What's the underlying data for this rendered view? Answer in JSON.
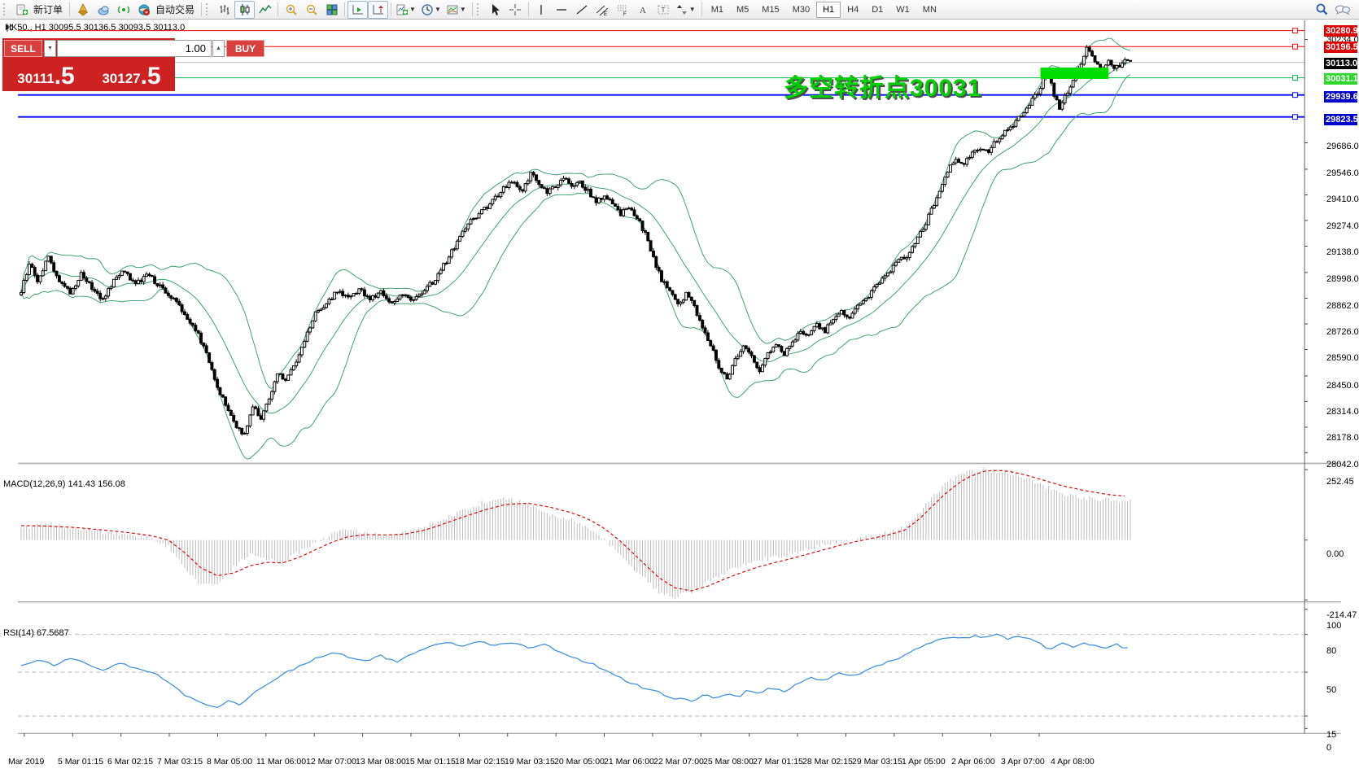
{
  "toolbar": {
    "new_order_label": "新订单",
    "auto_trading_label": "自动交易",
    "timeframes": [
      "M1",
      "M5",
      "M15",
      "M30",
      "H1",
      "H4",
      "D1",
      "W1",
      "MN"
    ],
    "active_timeframe": "H1",
    "icon_names": [
      "new-order-icon",
      "compass-icon",
      "cloud-icon",
      "signal-icon",
      "globe-icon",
      "bar-chart-icon",
      "candlestick-icon",
      "line-chart-icon",
      "zoom-in-icon",
      "zoom-out-icon",
      "tile-windows-icon",
      "auto-scroll-icon",
      "chart-shift-icon",
      "indicators-icon",
      "periods-icon",
      "templates-icon",
      "cursor-icon",
      "crosshair-icon",
      "vertical-line-icon",
      "horizontal-line-icon",
      "trendline-icon",
      "channel-icon",
      "fibonacci-icon",
      "text-icon",
      "text-label-icon",
      "arrows-icon",
      "search-icon",
      "chat-icon"
    ]
  },
  "chart": {
    "title": "HK50., H1  30095.5 30136.5 30093.5 30113.0",
    "symbol": "HK50.",
    "period": "H1",
    "open": "30095.5",
    "high": "30136.5",
    "low": "30093.5",
    "close": "30113.0"
  },
  "trade_panel": {
    "sell_label": "SELL",
    "buy_label": "BUY",
    "volume": "1.00",
    "sell_price_main": "30111",
    "sell_price_frac": ".5",
    "buy_price_main": "30127",
    "buy_price_frac": ".5"
  },
  "annotation": {
    "text": "多空转折点30031",
    "color": "#00cf00"
  },
  "macd_panel": {
    "label": "MACD(12,26,9) 141.43 156.08"
  },
  "rsi_panel": {
    "label": "RSI(14) 67.5687"
  },
  "price_axis": {
    "ticks": [
      "30234.0",
      "29686.0",
      "29546.0",
      "29410.0",
      "29274.0",
      "29138.0",
      "28998.0",
      "28862.0",
      "28726.0",
      "28590.0",
      "28450.0",
      "28314.0",
      "28178.0",
      "28042.0"
    ],
    "tick_values": [
      30234.0,
      29686.0,
      29546.0,
      29410.0,
      29274.0,
      29138.0,
      28998.0,
      28862.0,
      28726.0,
      28590.0,
      28450.0,
      28314.0,
      28178.0,
      28042.0
    ]
  },
  "macd_axis": {
    "labels": [
      "252.45",
      "0.00",
      "-214.47"
    ],
    "values": [
      252.45,
      0,
      -214.47
    ]
  },
  "rsi_axis": {
    "labels": [
      "100",
      "80",
      "50",
      "15",
      "0"
    ],
    "values": [
      100,
      80,
      50,
      15,
      0
    ]
  },
  "time_axis": [
    "Mar 2019",
    "5 Mar 01:15",
    "6 Mar 02:15",
    "7 Mar 03:15",
    "8 Mar 05:00",
    "11 Mar 06:00",
    "12 Mar 07:00",
    "13 Mar 08:00",
    "15 Mar 01:15",
    "18 Mar 02:15",
    "19 Mar 03:15",
    "20 Mar 05:00",
    "21 Mar 06:00",
    "22 Mar 07:00",
    "25 Mar 08:00",
    "27 Mar 01:15",
    "28 Mar 02:15",
    "29 Mar 03:15",
    "1 Apr 05:00",
    "2 Apr 06:00",
    "3 Apr 07:00",
    "4 Apr 08:00"
  ],
  "chart_data": {
    "type": "candlestick",
    "symbol": "HK50",
    "timeframe": "H1",
    "bar_count": 408,
    "price_range": [
      28042.0,
      30280.9
    ],
    "indicators": {
      "bollinger": {
        "period": 20,
        "deviation": 2,
        "color": "#3aa06a"
      },
      "macd": {
        "fast": 12,
        "slow": 26,
        "signal": 9,
        "current": 141.43,
        "signal_current": 156.08,
        "range": [
          -214.47,
          252.45
        ]
      },
      "rsi": {
        "period": 14,
        "current": 67.5687,
        "levels": [
          80,
          50,
          15
        ]
      }
    },
    "horizontal_lines": [
      {
        "label": "30280.9",
        "price": 30280.9,
        "line_color": "#ff0000",
        "badge_color": "#dd0000",
        "thickness": 1,
        "handle": true
      },
      {
        "label": "30196.5",
        "price": 30196.5,
        "line_color": "#ff0000",
        "badge_color": "#dd0000",
        "thickness": 1,
        "handle": true
      },
      {
        "label": "30113.0",
        "price": 30113.0,
        "line_color": "#bbbbbb",
        "badge_color": "#000000",
        "thickness": 1,
        "handle": false
      },
      {
        "label": "30031.1",
        "price": 30031.1,
        "line_color": "#00b94d",
        "badge_color": "#2ed62e",
        "thickness": 1,
        "handle": true
      },
      {
        "label": "29939.6",
        "price": 29939.6,
        "line_color": "#0000ff",
        "badge_color": "#0000cc",
        "thickness": 2,
        "handle": true
      },
      {
        "label": "29823.5",
        "price": 29823.5,
        "line_color": "#0000ff",
        "badge_color": "#0000cc",
        "thickness": 2,
        "handle": true
      }
    ],
    "support_zone": {
      "price_top": 30085,
      "price_bottom": 30025,
      "bar_start": 374,
      "bar_end": 399,
      "color": "#00dd00"
    },
    "price_anchors": [
      [
        0,
        28900
      ],
      [
        3,
        29040
      ],
      [
        6,
        28960
      ],
      [
        10,
        29080
      ],
      [
        14,
        28950
      ],
      [
        18,
        28890
      ],
      [
        22,
        28990
      ],
      [
        26,
        28920
      ],
      [
        30,
        28850
      ],
      [
        34,
        28960
      ],
      [
        38,
        29010
      ],
      [
        42,
        28930
      ],
      [
        46,
        28990
      ],
      [
        50,
        28940
      ],
      [
        54,
        28880
      ],
      [
        58,
        28820
      ],
      [
        61,
        28750
      ],
      [
        64,
        28700
      ],
      [
        67,
        28600
      ],
      [
        70,
        28480
      ],
      [
        73,
        28360
      ],
      [
        76,
        28270
      ],
      [
        79,
        28180
      ],
      [
        82,
        28140
      ],
      [
        85,
        28290
      ],
      [
        88,
        28230
      ],
      [
        91,
        28330
      ],
      [
        94,
        28460
      ],
      [
        97,
        28430
      ],
      [
        100,
        28500
      ],
      [
        104,
        28640
      ],
      [
        108,
        28780
      ],
      [
        112,
        28840
      ],
      [
        116,
        28900
      ],
      [
        120,
        28860
      ],
      [
        124,
        28910
      ],
      [
        128,
        28860
      ],
      [
        132,
        28890
      ],
      [
        136,
        28840
      ],
      [
        140,
        28880
      ],
      [
        144,
        28850
      ],
      [
        148,
        28910
      ],
      [
        152,
        28960
      ],
      [
        156,
        29060
      ],
      [
        160,
        29160
      ],
      [
        164,
        29260
      ],
      [
        168,
        29310
      ],
      [
        172,
        29360
      ],
      [
        176,
        29430
      ],
      [
        180,
        29480
      ],
      [
        184,
        29440
      ],
      [
        187,
        29520
      ],
      [
        190,
        29470
      ],
      [
        193,
        29420
      ],
      [
        196,
        29460
      ],
      [
        199,
        29500
      ],
      [
        202,
        29450
      ],
      [
        205,
        29480
      ],
      [
        208,
        29430
      ],
      [
        211,
        29370
      ],
      [
        214,
        29410
      ],
      [
        217,
        29360
      ],
      [
        220,
        29310
      ],
      [
        223,
        29350
      ],
      [
        226,
        29290
      ],
      [
        229,
        29200
      ],
      [
        232,
        29070
      ],
      [
        235,
        28960
      ],
      [
        238,
        28890
      ],
      [
        241,
        28830
      ],
      [
        244,
        28880
      ],
      [
        247,
        28820
      ],
      [
        250,
        28700
      ],
      [
        253,
        28610
      ],
      [
        256,
        28500
      ],
      [
        259,
        28430
      ],
      [
        262,
        28540
      ],
      [
        265,
        28600
      ],
      [
        268,
        28550
      ],
      [
        271,
        28480
      ],
      [
        274,
        28560
      ],
      [
        277,
        28610
      ],
      [
        280,
        28570
      ],
      [
        283,
        28630
      ],
      [
        286,
        28690
      ],
      [
        289,
        28660
      ],
      [
        292,
        28720
      ],
      [
        295,
        28690
      ],
      [
        298,
        28750
      ],
      [
        301,
        28790
      ],
      [
        304,
        28760
      ],
      [
        307,
        28820
      ],
      [
        310,
        28860
      ],
      [
        313,
        28910
      ],
      [
        316,
        28960
      ],
      [
        319,
        29010
      ],
      [
        322,
        29060
      ],
      [
        325,
        29090
      ],
      [
        328,
        29150
      ],
      [
        331,
        29230
      ],
      [
        334,
        29330
      ],
      [
        337,
        29440
      ],
      [
        340,
        29540
      ],
      [
        343,
        29600
      ],
      [
        346,
        29570
      ],
      [
        349,
        29630
      ],
      [
        352,
        29660
      ],
      [
        355,
        29640
      ],
      [
        358,
        29700
      ],
      [
        361,
        29740
      ],
      [
        364,
        29780
      ],
      [
        367,
        29830
      ],
      [
        370,
        29890
      ],
      [
        373,
        29950
      ],
      [
        375,
        30020
      ],
      [
        377,
        30080
      ],
      [
        379,
        29940
      ],
      [
        381,
        29870
      ],
      [
        383,
        29930
      ],
      [
        385,
        29990
      ],
      [
        387,
        30040
      ],
      [
        389,
        30110
      ],
      [
        391,
        30200
      ],
      [
        393,
        30150
      ],
      [
        395,
        30100
      ],
      [
        397,
        30060
      ],
      [
        399,
        30120
      ],
      [
        401,
        30080
      ],
      [
        403,
        30100
      ],
      [
        405,
        30140
      ],
      [
        407,
        30113
      ]
    ],
    "macd_hist_anchors": [
      [
        0,
        45
      ],
      [
        10,
        58
      ],
      [
        20,
        45
      ],
      [
        30,
        30
      ],
      [
        40,
        18
      ],
      [
        48,
        5
      ],
      [
        54,
        -25
      ],
      [
        60,
        -95
      ],
      [
        66,
        -165
      ],
      [
        72,
        -155
      ],
      [
        78,
        -100
      ],
      [
        84,
        -50
      ],
      [
        90,
        -65
      ],
      [
        96,
        -80
      ],
      [
        102,
        -45
      ],
      [
        108,
        -12
      ],
      [
        114,
        22
      ],
      [
        120,
        38
      ],
      [
        127,
        22
      ],
      [
        134,
        14
      ],
      [
        141,
        28
      ],
      [
        148,
        45
      ],
      [
        155,
        75
      ],
      [
        162,
        105
      ],
      [
        170,
        138
      ],
      [
        178,
        150
      ],
      [
        186,
        128
      ],
      [
        194,
        95
      ],
      [
        202,
        72
      ],
      [
        208,
        45
      ],
      [
        214,
        5
      ],
      [
        220,
        -55
      ],
      [
        227,
        -125
      ],
      [
        234,
        -185
      ],
      [
        240,
        -205
      ],
      [
        246,
        -185
      ],
      [
        252,
        -150
      ],
      [
        258,
        -120
      ],
      [
        264,
        -95
      ],
      [
        270,
        -75
      ],
      [
        276,
        -62
      ],
      [
        282,
        -50
      ],
      [
        288,
        -35
      ],
      [
        294,
        -20
      ],
      [
        300,
        -8
      ],
      [
        306,
        3
      ],
      [
        312,
        12
      ],
      [
        318,
        25
      ],
      [
        324,
        45
      ],
      [
        329,
        90
      ],
      [
        334,
        150
      ],
      [
        339,
        200
      ],
      [
        344,
        232
      ],
      [
        349,
        250
      ],
      [
        354,
        252
      ],
      [
        359,
        246
      ],
      [
        364,
        236
      ],
      [
        369,
        220
      ],
      [
        374,
        200
      ],
      [
        379,
        178
      ],
      [
        384,
        160
      ],
      [
        389,
        152
      ],
      [
        394,
        148
      ],
      [
        399,
        144
      ],
      [
        403,
        142
      ],
      [
        407,
        141
      ]
    ],
    "macd_signal_anchors": [
      [
        0,
        52
      ],
      [
        10,
        50
      ],
      [
        20,
        45
      ],
      [
        30,
        36
      ],
      [
        40,
        26
      ],
      [
        48,
        15
      ],
      [
        54,
        0
      ],
      [
        60,
        -45
      ],
      [
        66,
        -100
      ],
      [
        72,
        -128
      ],
      [
        78,
        -118
      ],
      [
        84,
        -92
      ],
      [
        90,
        -80
      ],
      [
        96,
        -82
      ],
      [
        102,
        -62
      ],
      [
        108,
        -35
      ],
      [
        114,
        -8
      ],
      [
        120,
        12
      ],
      [
        127,
        20
      ],
      [
        134,
        18
      ],
      [
        141,
        22
      ],
      [
        148,
        35
      ],
      [
        155,
        58
      ],
      [
        162,
        82
      ],
      [
        170,
        108
      ],
      [
        178,
        128
      ],
      [
        186,
        132
      ],
      [
        194,
        118
      ],
      [
        202,
        98
      ],
      [
        208,
        76
      ],
      [
        214,
        42
      ],
      [
        220,
        -5
      ],
      [
        227,
        -70
      ],
      [
        234,
        -135
      ],
      [
        240,
        -172
      ],
      [
        246,
        -182
      ],
      [
        252,
        -165
      ],
      [
        258,
        -140
      ],
      [
        264,
        -118
      ],
      [
        270,
        -98
      ],
      [
        276,
        -82
      ],
      [
        282,
        -68
      ],
      [
        288,
        -52
      ],
      [
        294,
        -36
      ],
      [
        300,
        -20
      ],
      [
        306,
        -6
      ],
      [
        312,
        6
      ],
      [
        318,
        18
      ],
      [
        324,
        35
      ],
      [
        329,
        70
      ],
      [
        334,
        118
      ],
      [
        339,
        165
      ],
      [
        344,
        205
      ],
      [
        349,
        232
      ],
      [
        354,
        248
      ],
      [
        359,
        250
      ],
      [
        364,
        244
      ],
      [
        369,
        232
      ],
      [
        374,
        218
      ],
      [
        379,
        203
      ],
      [
        384,
        190
      ],
      [
        389,
        180
      ],
      [
        394,
        171
      ],
      [
        399,
        163
      ],
      [
        403,
        159
      ],
      [
        407,
        156
      ]
    ],
    "rsi_anchors": [
      [
        0,
        55
      ],
      [
        6,
        60
      ],
      [
        12,
        56
      ],
      [
        18,
        61
      ],
      [
        24,
        57
      ],
      [
        30,
        51
      ],
      [
        36,
        57
      ],
      [
        42,
        54
      ],
      [
        48,
        50
      ],
      [
        54,
        42
      ],
      [
        60,
        32
      ],
      [
        66,
        25
      ],
      [
        72,
        22
      ],
      [
        76,
        27
      ],
      [
        80,
        24
      ],
      [
        84,
        31
      ],
      [
        90,
        40
      ],
      [
        96,
        48
      ],
      [
        102,
        55
      ],
      [
        108,
        61
      ],
      [
        114,
        66
      ],
      [
        120,
        62
      ],
      [
        126,
        59
      ],
      [
        132,
        63
      ],
      [
        138,
        58
      ],
      [
        144,
        65
      ],
      [
        150,
        71
      ],
      [
        156,
        74
      ],
      [
        162,
        70
      ],
      [
        168,
        75
      ],
      [
        174,
        71
      ],
      [
        180,
        74
      ],
      [
        186,
        69
      ],
      [
        192,
        72
      ],
      [
        198,
        66
      ],
      [
        204,
        61
      ],
      [
        210,
        56
      ],
      [
        216,
        49
      ],
      [
        222,
        43
      ],
      [
        228,
        38
      ],
      [
        234,
        34
      ],
      [
        240,
        29
      ],
      [
        246,
        27
      ],
      [
        251,
        33
      ],
      [
        255,
        28
      ],
      [
        259,
        34
      ],
      [
        263,
        30
      ],
      [
        267,
        36
      ],
      [
        271,
        32
      ],
      [
        275,
        38
      ],
      [
        280,
        34
      ],
      [
        285,
        41
      ],
      [
        290,
        46
      ],
      [
        295,
        43
      ],
      [
        300,
        49
      ],
      [
        305,
        46
      ],
      [
        310,
        52
      ],
      [
        315,
        56
      ],
      [
        320,
        60
      ],
      [
        325,
        64
      ],
      [
        330,
        70
      ],
      [
        335,
        75
      ],
      [
        340,
        78
      ],
      [
        345,
        76
      ],
      [
        350,
        79
      ],
      [
        355,
        77
      ],
      [
        358,
        80
      ],
      [
        362,
        77
      ],
      [
        366,
        79
      ],
      [
        370,
        76
      ],
      [
        374,
        72
      ],
      [
        378,
        68
      ],
      [
        382,
        73
      ],
      [
        386,
        70
      ],
      [
        390,
        74
      ],
      [
        394,
        71
      ],
      [
        398,
        69
      ],
      [
        402,
        72
      ],
      [
        407,
        67.6
      ]
    ]
  }
}
